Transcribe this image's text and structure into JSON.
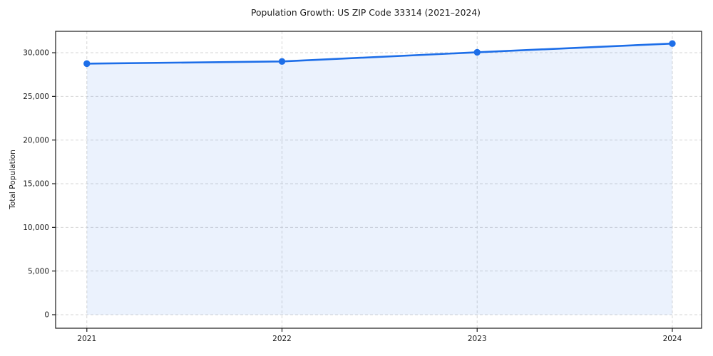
{
  "figure": {
    "title": "Population Growth: US ZIP Code 33314 (2021–2024)"
  },
  "chart_data": {
    "type": "line",
    "title": "Population Growth: US ZIP Code 33314 (2021–2024)",
    "xlabel": "",
    "ylabel": "Total Population",
    "x": [
      2021,
      2022,
      2023,
      2024
    ],
    "xtick_labels": [
      "2021",
      "2022",
      "2023",
      "2024"
    ],
    "series": [
      {
        "name": "Total Population",
        "values": [
          28750,
          29000,
          30050,
          31050
        ]
      }
    ],
    "yticks": [
      0,
      5000,
      10000,
      15000,
      20000,
      25000,
      30000
    ],
    "ytick_labels": [
      "0",
      "5,000",
      "10,000",
      "15,000",
      "20,000",
      "25,000",
      "30,000"
    ],
    "xlim": [
      2020.84,
      2024.15
    ],
    "ylim": [
      -1550,
      32450
    ],
    "grid": "dashed",
    "legend": "none",
    "marker": "circle",
    "area_fill": true,
    "colors": {
      "line": "#1d6ee8",
      "marker": "#1d6ee8",
      "area_fill": "rgba(29,110,232,0.09)",
      "grid": "#d6d6d6",
      "spine": "#1a1a1a",
      "tick_text": "#1a1a1a",
      "background": "#ffffff"
    }
  }
}
